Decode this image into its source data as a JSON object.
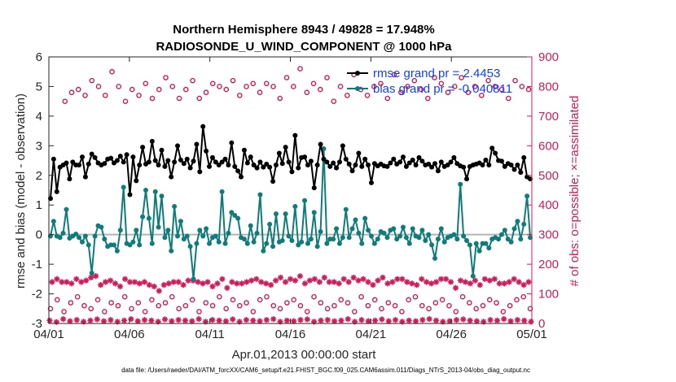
{
  "chart_data": {
    "type": "line",
    "title_line1": "Northern Hemisphere 8943 / 49828 = 17.948%",
    "title_line2": "RADIOSONDE_U_WIND_COMPONENT @ 1000 hPa",
    "xlabel": "Apr.01,2013 00:00:00 start",
    "ylabel_left": "rmse and bias (model - observation)",
    "ylabel_right": "# of obs: o=possible; ×=assimilated",
    "footer": "data file: /Users/raeder/DAI/ATM_forcXX/CAM6_setup/f.e21.FHIST_BGC.f09_025.CAM6assim.011/Diags_NTrS_2013-04/obs_diag_output.nc",
    "xlim": [
      0,
      30
    ],
    "ylim_left": [
      -3,
      6
    ],
    "ylim_right": [
      0,
      900
    ],
    "x_tick_labels": [
      "04/01",
      "04/06",
      "04/11",
      "04/16",
      "04/21",
      "04/26",
      "05/01"
    ],
    "x_tick_values": [
      0,
      5,
      10,
      15,
      20,
      25,
      30
    ],
    "y_left_ticks": [
      -3,
      -2,
      -1,
      0,
      1,
      2,
      3,
      4,
      5,
      6
    ],
    "y_right_ticks": [
      0,
      100,
      200,
      300,
      400,
      500,
      600,
      700,
      800,
      900
    ],
    "legend": [
      "rmse grand pr = 2.4453",
      "bias grand pr = -0.040811"
    ],
    "colors": {
      "rmse": "#000000",
      "bias": "#0f7c7c",
      "obs": "#cc1c5a",
      "legend_text": "#1040ff",
      "zero_line": "#b4b4b4"
    },
    "rmse": [
      1.22,
      2.55,
      1.45,
      2.28,
      2.35,
      2.42,
      1.88,
      2.45,
      2.35,
      2.35,
      2.62,
      1.95,
      2.38,
      2.72,
      2.6,
      2.42,
      2.35,
      2.4,
      2.55,
      2.58,
      2.42,
      2.5,
      2.65,
      2.45,
      2.7,
      1.35,
      2.62,
      1.82,
      2.35,
      2.95,
      2.38,
      2.45,
      3.15,
      2.5,
      2.35,
      2.85,
      2.3,
      2.5,
      1.95,
      2.45,
      3.0,
      2.52,
      2.4,
      2.55,
      2.25,
      2.48,
      3.05,
      2.12,
      3.65,
      2.82,
      2.3,
      2.6,
      2.45,
      2.35,
      2.45,
      2.55,
      2.35,
      3.1,
      2.3,
      2.15,
      1.95,
      2.85,
      2.42,
      2.62,
      2.35,
      2.25,
      2.45,
      2.28,
      2.38,
      2.28,
      1.8,
      2.35,
      2.75,
      2.4,
      2.95,
      2.45,
      2.12,
      3.35,
      2.25,
      2.6,
      2.62,
      2.35,
      2.48,
      1.58,
      2.35,
      3.05,
      2.55,
      2.45,
      2.3,
      2.42,
      2.25,
      2.45,
      3.0,
      2.55,
      2.38,
      2.15,
      2.35,
      2.75,
      2.3,
      2.55,
      2.35,
      1.75,
      2.4,
      2.32,
      2.38,
      2.32,
      2.3,
      2.42,
      2.55,
      2.38,
      2.45,
      2.62,
      2.3,
      2.42,
      2.52,
      2.35,
      2.6,
      2.48,
      2.35,
      2.38,
      2.28,
      2.4,
      2.15,
      2.45,
      2.3,
      2.35,
      2.45,
      2.6,
      2.4,
      2.32,
      2.28,
      1.88,
      2.3,
      2.35,
      2.38,
      2.42,
      2.35,
      2.52,
      2.35,
      2.92,
      2.75,
      2.5,
      2.48,
      2.3,
      2.4,
      2.35,
      2.2,
      2.35,
      2.1,
      2.6,
      1.95,
      1.88
    ],
    "bias": [
      -0.05,
      0.45,
      -0.05,
      -0.1,
      0.05,
      0.85,
      -0.12,
      -0.05,
      0.02,
      -0.1,
      -0.25,
      -0.05,
      -0.35,
      -1.3,
      -0.05,
      0.3,
      0.25,
      -0.15,
      -0.4,
      -0.35,
      -0.35,
      -0.55,
      0.15,
      1.6,
      -0.3,
      -0.35,
      -0.25,
      0.15,
      -0.35,
      0.6,
      1.5,
      0.55,
      -0.3,
      1.45,
      0.25,
      1.3,
      -0.1,
      0.15,
      -0.55,
      0.95,
      -0.05,
      0.45,
      -0.15,
      -0.05,
      -0.4,
      -1.5,
      -0.3,
      0.15,
      -0.05,
      0.2,
      -0.3,
      -0.1,
      -0.05,
      -0.25,
      1.45,
      -0.3,
      0.05,
      0.75,
      0.65,
      0.55,
      -0.1,
      -0.15,
      -0.3,
      0.3,
      -0.25,
      0.05,
      1.35,
      -0.55,
      -0.3,
      0.35,
      -0.4,
      0.7,
      -0.25,
      -0.2,
      0.7,
      -0.05,
      -0.2,
      0.95,
      -0.35,
      -0.25,
      1.15,
      -0.3,
      -0.15,
      0.75,
      -0.4,
      0.1,
      2.9,
      -0.3,
      -0.15,
      -0.15,
      0.2,
      -0.3,
      -0.1,
      0.85,
      -0.1,
      0.2,
      0.5,
      0.05,
      -0.3,
      0.55,
      0.15,
      -0.05,
      -0.3,
      -0.15,
      0.1,
      0.05,
      -0.1,
      0.15,
      0.2,
      -0.15,
      -0.05,
      0.25,
      -0.1,
      -0.3,
      0.2,
      -0.05,
      -0.1,
      0.15,
      -0.2,
      0.0,
      -0.35,
      -0.8,
      -0.15,
      0.2,
      -0.25,
      -0.1,
      -0.05,
      0.0,
      -0.15,
      1.7,
      -0.05,
      -0.2,
      -0.35,
      -1.4,
      -0.3,
      -0.55,
      -0.3,
      -0.3,
      -0.45,
      -0.15,
      -0.1,
      -0.15,
      0.0,
      0.15,
      -0.15,
      -0.25,
      0.2,
      0.45,
      -0.15,
      0.35,
      1.3,
      -0.1
    ],
    "obs_possible_top": [
      750,
      780,
      790,
      770,
      820,
      800,
      770,
      850,
      800,
      750,
      790,
      770,
      810,
      760,
      790,
      830,
      800,
      760,
      790,
      820,
      760,
      780,
      810,
      800,
      790,
      820,
      770,
      800,
      810,
      780,
      810,
      800,
      760,
      830,
      800,
      860,
      780,
      810,
      790,
      830,
      750,
      800,
      770,
      840,
      790,
      770,
      800,
      810,
      760,
      840,
      780,
      800,
      820,
      790,
      760,
      830,
      810,
      780,
      800,
      830,
      780,
      800,
      770,
      820,
      800,
      790,
      760,
      820,
      800,
      790
    ],
    "obs_possible_bottom": [
      50,
      80,
      40,
      70,
      90,
      60,
      50,
      80,
      40,
      70,
      60,
      90,
      50,
      70,
      40,
      80,
      60,
      70,
      90,
      50,
      60,
      80,
      40,
      70,
      60,
      90,
      50,
      80,
      60,
      70,
      40,
      80,
      90,
      60,
      50,
      70,
      80,
      60,
      40,
      90,
      70,
      50,
      60,
      80,
      70,
      40,
      90,
      60,
      80,
      50,
      70,
      60,
      40,
      80,
      90,
      60,
      50,
      70,
      80,
      60,
      40,
      90,
      70,
      50,
      60,
      80,
      70,
      40,
      60,
      80,
      90,
      50
    ],
    "obs_assimilated_mid": [
      140,
      150,
      140,
      140,
      135,
      150,
      140,
      145,
      155,
      160,
      130,
      140,
      145,
      135,
      125,
      150,
      140,
      140,
      135,
      140,
      130,
      125,
      110,
      130,
      135,
      140,
      140,
      130,
      145,
      145,
      140,
      135,
      140,
      125,
      135,
      150,
      120,
      140,
      135,
      135,
      140,
      145,
      150,
      140,
      135,
      130,
      145,
      155,
      140,
      150,
      145,
      160,
      135,
      145,
      150,
      140,
      155,
      140,
      140,
      135,
      150,
      140,
      155,
      145,
      150,
      140,
      130,
      145,
      155,
      135,
      140,
      150,
      150,
      140,
      135,
      130,
      150,
      140,
      135,
      140,
      150,
      150,
      140,
      120,
      145,
      140,
      135,
      145,
      130,
      150,
      145,
      150,
      135,
      135,
      140,
      150,
      140,
      130,
      140
    ],
    "obs_assimilated_bottom": [
      10,
      5,
      15,
      8,
      12,
      6,
      10,
      14,
      8,
      12,
      6,
      10,
      15,
      8,
      12,
      10,
      6,
      14,
      8,
      12,
      10,
      8,
      15,
      6,
      12,
      10,
      8,
      14,
      6,
      12,
      10,
      8,
      12,
      15,
      6,
      10,
      8,
      12,
      14,
      6,
      10,
      12,
      8,
      10,
      15,
      6,
      12,
      8,
      10,
      14,
      8,
      12,
      6,
      10,
      8,
      12,
      15,
      10,
      6,
      8,
      12,
      14,
      10,
      8,
      6,
      12,
      10,
      15,
      8,
      12,
      10,
      6
    ]
  }
}
